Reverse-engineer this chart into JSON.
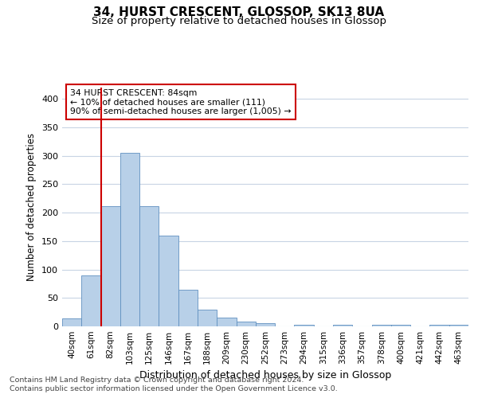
{
  "title_line1": "34, HURST CRESCENT, GLOSSOP, SK13 8UA",
  "title_line2": "Size of property relative to detached houses in Glossop",
  "xlabel": "Distribution of detached houses by size in Glossop",
  "ylabel": "Number of detached properties",
  "categories": [
    "40sqm",
    "61sqm",
    "82sqm",
    "103sqm",
    "125sqm",
    "146sqm",
    "167sqm",
    "188sqm",
    "209sqm",
    "230sqm",
    "252sqm",
    "273sqm",
    "294sqm",
    "315sqm",
    "336sqm",
    "357sqm",
    "378sqm",
    "400sqm",
    "421sqm",
    "442sqm",
    "463sqm"
  ],
  "values": [
    14,
    89,
    211,
    305,
    211,
    160,
    64,
    30,
    15,
    9,
    6,
    0,
    3,
    0,
    3,
    0,
    3,
    3,
    0,
    3,
    3
  ],
  "bar_color": "#b8d0e8",
  "bar_edge_color": "#6090c0",
  "vline_color": "#cc0000",
  "annotation_line1": "34 HURST CRESCENT: 84sqm",
  "annotation_line2": "← 10% of detached houses are smaller (111)",
  "annotation_line3": "90% of semi-detached houses are larger (1,005) →",
  "annotation_box_color": "#ffffff",
  "annotation_box_edge_color": "#cc0000",
  "ylim": [
    0,
    420
  ],
  "yticks": [
    0,
    50,
    100,
    150,
    200,
    250,
    300,
    350,
    400
  ],
  "background_color": "#ffffff",
  "grid_color": "#c8d4e4",
  "footer_line1": "Contains HM Land Registry data © Crown copyright and database right 2024.",
  "footer_line2": "Contains public sector information licensed under the Open Government Licence v3.0."
}
